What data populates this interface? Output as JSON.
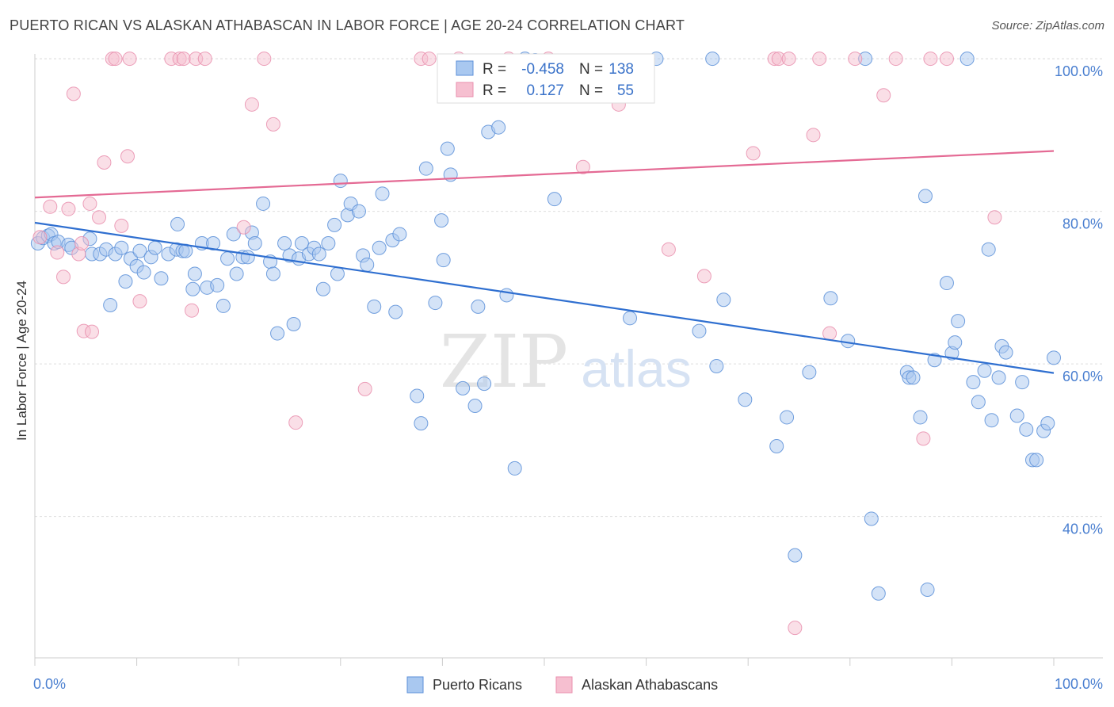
{
  "title": "PUERTO RICAN VS ALASKAN ATHABASCAN IN LABOR FORCE | AGE 20-24 CORRELATION CHART",
  "source": "Source: ZipAtlas.com",
  "watermark": {
    "zip": "ZIP",
    "atlas": "atlas"
  },
  "colors": {
    "blue_fill": "#a9c8f0",
    "blue_stroke": "#5b8fd8",
    "blue_line": "#2f6fd0",
    "pink_fill": "#f6bfd0",
    "pink_stroke": "#e98fae",
    "pink_line": "#e46a94",
    "grid": "#dddddd",
    "tick_text": "#4a7fd0"
  },
  "stats_box": {
    "rows": [
      {
        "r_label": "R =",
        "r_value": "-0.458",
        "n_label": "N =",
        "n_value": "138",
        "color": "blue"
      },
      {
        "r_label": "R =",
        "r_value": "0.127",
        "n_label": "N =",
        "n_value": "55",
        "color": "pink"
      }
    ]
  },
  "legend": [
    {
      "label": "Puerto Ricans",
      "color": "blue"
    },
    {
      "label": "Alaskan Athabascans",
      "color": "pink"
    }
  ],
  "chart_data": {
    "type": "scatter",
    "title": "PUERTO RICAN VS ALASKAN ATHABASCAN IN LABOR FORCE | AGE 20-24 CORRELATION CHART",
    "xlabel": "",
    "ylabel": "In Labor Force | Age 20-24",
    "xlim": [
      0,
      100
    ],
    "ylim": [
      22.5,
      102.5
    ],
    "x_tick_labels": [
      {
        "v": 0,
        "label": "0.0%"
      },
      {
        "v": 100,
        "label": "100.0%"
      }
    ],
    "y_tick_labels": [
      {
        "v": 100,
        "label": "100.0%"
      },
      {
        "v": 80,
        "label": "80.0%"
      },
      {
        "v": 60,
        "label": "60.0%"
      },
      {
        "v": 40,
        "label": "40.0%"
      }
    ],
    "grid": true,
    "legend_position": "bottom-center",
    "series": [
      {
        "name": "Puerto Ricans",
        "color": "blue",
        "trend": {
          "x": [
            0,
            100
          ],
          "y": [
            78.5,
            58.8
          ]
        },
        "points": [
          [
            0.3,
            75.8
          ],
          [
            0.8,
            76.5
          ],
          [
            1.3,
            76.8
          ],
          [
            1.6,
            77.0
          ],
          [
            1.9,
            75.8
          ],
          [
            2.3,
            76.0
          ],
          [
            3.3,
            75.6
          ],
          [
            3.6,
            75.2
          ],
          [
            5.4,
            76.4
          ],
          [
            5.6,
            74.4
          ],
          [
            6.4,
            74.4
          ],
          [
            7.0,
            75.0
          ],
          [
            7.4,
            67.7
          ],
          [
            7.9,
            74.4
          ],
          [
            8.5,
            75.2
          ],
          [
            8.9,
            70.8
          ],
          [
            9.4,
            73.8
          ],
          [
            10.0,
            72.8
          ],
          [
            10.3,
            74.8
          ],
          [
            10.7,
            72.0
          ],
          [
            11.4,
            74.0
          ],
          [
            11.8,
            75.2
          ],
          [
            12.4,
            71.2
          ],
          [
            13.1,
            74.4
          ],
          [
            13.9,
            75.0
          ],
          [
            14.0,
            78.3
          ],
          [
            14.5,
            74.8
          ],
          [
            14.8,
            74.8
          ],
          [
            15.5,
            69.8
          ],
          [
            15.7,
            71.8
          ],
          [
            16.4,
            75.8
          ],
          [
            16.9,
            70.0
          ],
          [
            17.5,
            75.8
          ],
          [
            17.9,
            70.3
          ],
          [
            18.5,
            67.6
          ],
          [
            18.9,
            73.8
          ],
          [
            19.5,
            77.0
          ],
          [
            19.8,
            71.8
          ],
          [
            20.4,
            74.0
          ],
          [
            20.9,
            74.0
          ],
          [
            21.3,
            77.2
          ],
          [
            21.6,
            75.8
          ],
          [
            22.4,
            81.0
          ],
          [
            23.1,
            73.4
          ],
          [
            23.4,
            71.8
          ],
          [
            23.8,
            64.0
          ],
          [
            24.5,
            75.8
          ],
          [
            25.0,
            74.2
          ],
          [
            25.4,
            65.2
          ],
          [
            25.9,
            73.8
          ],
          [
            26.2,
            75.8
          ],
          [
            26.9,
            74.4
          ],
          [
            27.4,
            75.2
          ],
          [
            27.9,
            74.4
          ],
          [
            28.3,
            69.8
          ],
          [
            28.8,
            75.8
          ],
          [
            29.4,
            78.2
          ],
          [
            29.7,
            71.8
          ],
          [
            30.0,
            84.0
          ],
          [
            30.7,
            79.5
          ],
          [
            31.0,
            81.0
          ],
          [
            31.8,
            80.0
          ],
          [
            32.2,
            74.2
          ],
          [
            32.6,
            73.0
          ],
          [
            33.3,
            67.5
          ],
          [
            33.8,
            75.2
          ],
          [
            34.1,
            82.3
          ],
          [
            35.1,
            76.2
          ],
          [
            35.4,
            66.8
          ],
          [
            35.8,
            77.0
          ],
          [
            37.5,
            55.8
          ],
          [
            37.9,
            52.2
          ],
          [
            38.4,
            85.6
          ],
          [
            39.3,
            68.0
          ],
          [
            39.9,
            78.8
          ],
          [
            40.1,
            73.6
          ],
          [
            40.5,
            88.2
          ],
          [
            40.8,
            84.8
          ],
          [
            42.0,
            56.8
          ],
          [
            43.2,
            54.5
          ],
          [
            43.5,
            67.5
          ],
          [
            44.1,
            57.4
          ],
          [
            44.5,
            90.4
          ],
          [
            45.5,
            91.0
          ],
          [
            46.3,
            69.0
          ],
          [
            47.1,
            46.3
          ],
          [
            48.1,
            100.0
          ],
          [
            49.1,
            99.8
          ],
          [
            51.0,
            81.6
          ],
          [
            58.4,
            66.0
          ],
          [
            61.0,
            100.0
          ],
          [
            65.2,
            64.3
          ],
          [
            66.5,
            100.0
          ],
          [
            66.9,
            59.7
          ],
          [
            67.6,
            68.4
          ],
          [
            69.7,
            55.3
          ],
          [
            72.8,
            49.2
          ],
          [
            73.8,
            53.0
          ],
          [
            74.6,
            34.9
          ],
          [
            76.0,
            58.9
          ],
          [
            78.1,
            68.6
          ],
          [
            79.8,
            63.0
          ],
          [
            81.5,
            100.0
          ],
          [
            82.1,
            39.7
          ],
          [
            82.8,
            29.9
          ],
          [
            85.6,
            58.9
          ],
          [
            85.8,
            58.2
          ],
          [
            86.2,
            58.2
          ],
          [
            86.9,
            53.0
          ],
          [
            87.4,
            82.0
          ],
          [
            87.6,
            30.4
          ],
          [
            88.3,
            60.5
          ],
          [
            89.5,
            70.6
          ],
          [
            90.0,
            61.4
          ],
          [
            90.3,
            62.8
          ],
          [
            90.6,
            65.6
          ],
          [
            91.5,
            100.0
          ],
          [
            92.1,
            57.6
          ],
          [
            92.6,
            55.0
          ],
          [
            93.2,
            59.1
          ],
          [
            93.6,
            75.0
          ],
          [
            93.9,
            52.6
          ],
          [
            94.6,
            58.2
          ],
          [
            94.9,
            62.3
          ],
          [
            95.3,
            61.5
          ],
          [
            96.4,
            53.2
          ],
          [
            96.9,
            57.6
          ],
          [
            97.3,
            51.4
          ],
          [
            97.9,
            47.4
          ],
          [
            98.3,
            47.4
          ],
          [
            99.0,
            51.2
          ],
          [
            99.4,
            52.2
          ],
          [
            100.0,
            60.8
          ]
        ]
      },
      {
        "name": "Alaskan Athabascans",
        "color": "pink",
        "trend": {
          "x": [
            0,
            100
          ],
          "y": [
            81.8,
            87.9
          ]
        },
        "points": [
          [
            0.5,
            76.6
          ],
          [
            1.5,
            80.6
          ],
          [
            2.2,
            74.6
          ],
          [
            2.8,
            71.4
          ],
          [
            3.3,
            80.3
          ],
          [
            3.8,
            95.4
          ],
          [
            4.3,
            74.4
          ],
          [
            4.6,
            75.8
          ],
          [
            4.8,
            64.3
          ],
          [
            5.4,
            81.0
          ],
          [
            5.6,
            64.2
          ],
          [
            6.3,
            79.2
          ],
          [
            6.8,
            86.4
          ],
          [
            7.6,
            100.0
          ],
          [
            7.9,
            100.0
          ],
          [
            8.5,
            78.1
          ],
          [
            9.1,
            87.2
          ],
          [
            9.3,
            100.0
          ],
          [
            10.3,
            68.2
          ],
          [
            13.4,
            100.0
          ],
          [
            14.2,
            100.0
          ],
          [
            14.6,
            100.0
          ],
          [
            15.4,
            67.0
          ],
          [
            15.8,
            100.0
          ],
          [
            16.7,
            100.0
          ],
          [
            20.5,
            77.9
          ],
          [
            21.3,
            94.0
          ],
          [
            22.5,
            100.0
          ],
          [
            23.4,
            91.4
          ],
          [
            25.6,
            52.3
          ],
          [
            32.4,
            56.7
          ],
          [
            37.9,
            100.0
          ],
          [
            38.7,
            100.0
          ],
          [
            41.6,
            100.0
          ],
          [
            46.5,
            100.0
          ],
          [
            50.4,
            100.0
          ],
          [
            53.8,
            85.8
          ],
          [
            57.3,
            94.0
          ],
          [
            62.2,
            75.0
          ],
          [
            65.7,
            71.5
          ],
          [
            70.5,
            87.6
          ],
          [
            72.6,
            100.0
          ],
          [
            73.0,
            100.0
          ],
          [
            74.0,
            100.0
          ],
          [
            74.6,
            25.4
          ],
          [
            76.4,
            90.0
          ],
          [
            77.0,
            100.0
          ],
          [
            78.0,
            64.0
          ],
          [
            80.5,
            100.0
          ],
          [
            83.3,
            95.2
          ],
          [
            84.5,
            100.0
          ],
          [
            87.2,
            50.2
          ],
          [
            87.9,
            100.0
          ],
          [
            89.5,
            100.0
          ],
          [
            94.2,
            79.2
          ]
        ]
      }
    ]
  }
}
